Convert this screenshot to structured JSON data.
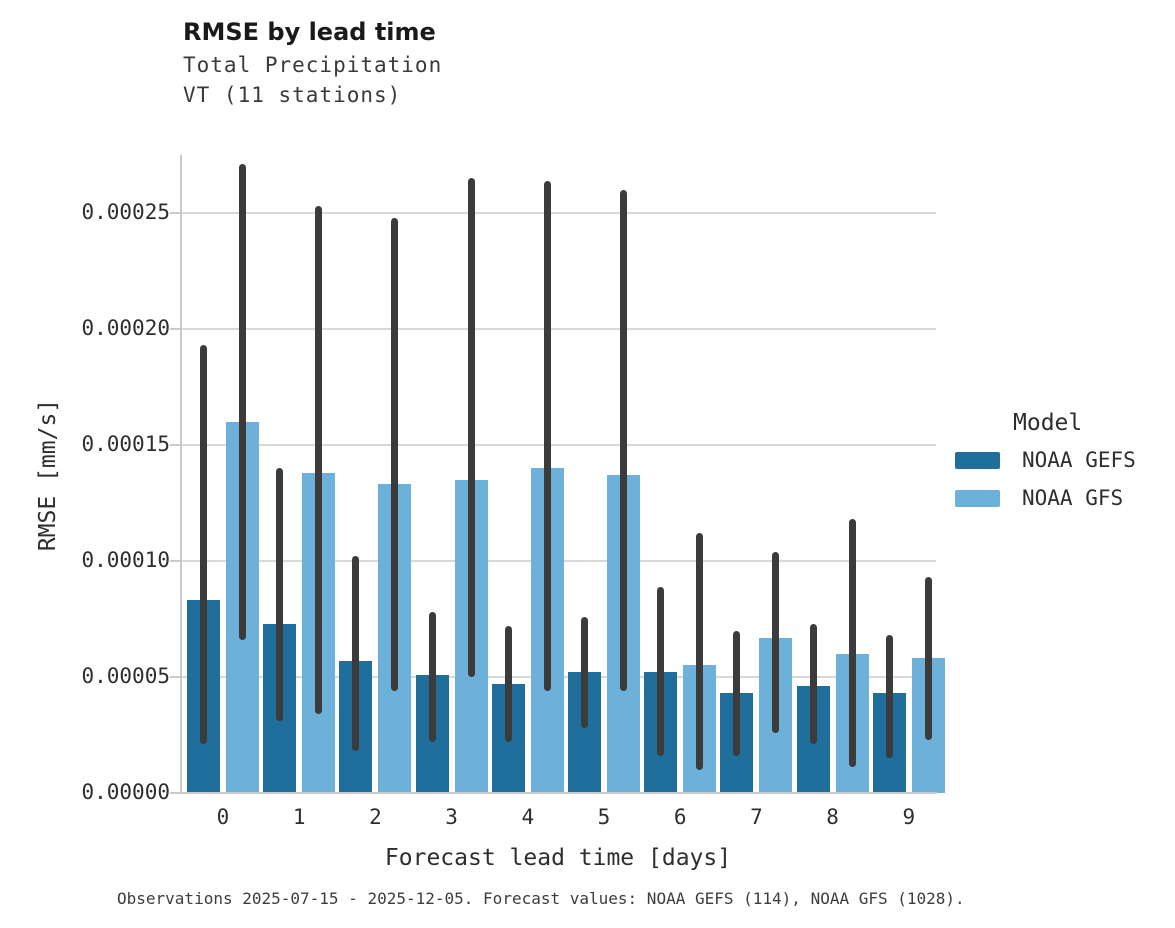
{
  "chart_data": {
    "type": "bar",
    "title": "RMSE by lead time",
    "subtitle": [
      "Total Precipitation",
      "VT (11 stations)"
    ],
    "xlabel": "Forecast lead time [days]",
    "ylabel": "RMSE [mm/s]",
    "categories": [
      "0",
      "1",
      "2",
      "3",
      "4",
      "5",
      "6",
      "7",
      "8",
      "9"
    ],
    "ylim": [
      0,
      0.000275
    ],
    "grid": "horizontal",
    "yticks": [
      {
        "v": 0.0,
        "label": "0.00000"
      },
      {
        "v": 5e-05,
        "label": "0.00005"
      },
      {
        "v": 0.0001,
        "label": "0.00010"
      },
      {
        "v": 0.00015,
        "label": "0.00015"
      },
      {
        "v": 0.0002,
        "label": "0.00020"
      },
      {
        "v": 0.00025,
        "label": "0.00025"
      }
    ],
    "series": [
      {
        "name": "NOAA GEFS",
        "color": "#1f6e9c",
        "values": [
          8.3e-05,
          7.3e-05,
          5.7e-05,
          5.1e-05,
          4.7e-05,
          5.2e-05,
          5.2e-05,
          4.3e-05,
          4.6e-05,
          4.3e-05
        ],
        "err_low": [
          2.1e-05,
          3.1e-05,
          1.8e-05,
          2.2e-05,
          2.2e-05,
          2.8e-05,
          1.6e-05,
          1.6e-05,
          2.1e-05,
          1.5e-05
        ],
        "err_high": [
          0.000193,
          0.00014,
          0.000102,
          7.8e-05,
          7.2e-05,
          7.6e-05,
          8.9e-05,
          7e-05,
          7.3e-05,
          6.8e-05
        ]
      },
      {
        "name": "NOAA GFS",
        "color": "#6db1da",
        "values": [
          0.00016,
          0.000138,
          0.000133,
          0.000135,
          0.00014,
          0.000137,
          5.5e-05,
          6.7e-05,
          6e-05,
          5.8e-05
        ],
        "err_low": [
          6.6e-05,
          3.4e-05,
          4.4e-05,
          5e-05,
          4.4e-05,
          4.4e-05,
          1e-05,
          2.6e-05,
          1.1e-05,
          2.3e-05
        ],
        "err_high": [
          0.000271,
          0.000253,
          0.000248,
          0.000265,
          0.000264,
          0.00026,
          0.000112,
          0.000104,
          0.000118,
          9.3e-05
        ]
      }
    ],
    "legend": {
      "title": "Model",
      "position": "right",
      "entries": [
        {
          "name": "NOAA GEFS",
          "color": "#1f6e9c"
        },
        {
          "name": "NOAA GFS",
          "color": "#6db1da"
        }
      ]
    },
    "error_bar_color": "#3b3b3b",
    "caption": "Observations 2025-07-15 - 2025-12-05. Forecast values: NOAA GEFS (114), NOAA GFS (1028)."
  }
}
